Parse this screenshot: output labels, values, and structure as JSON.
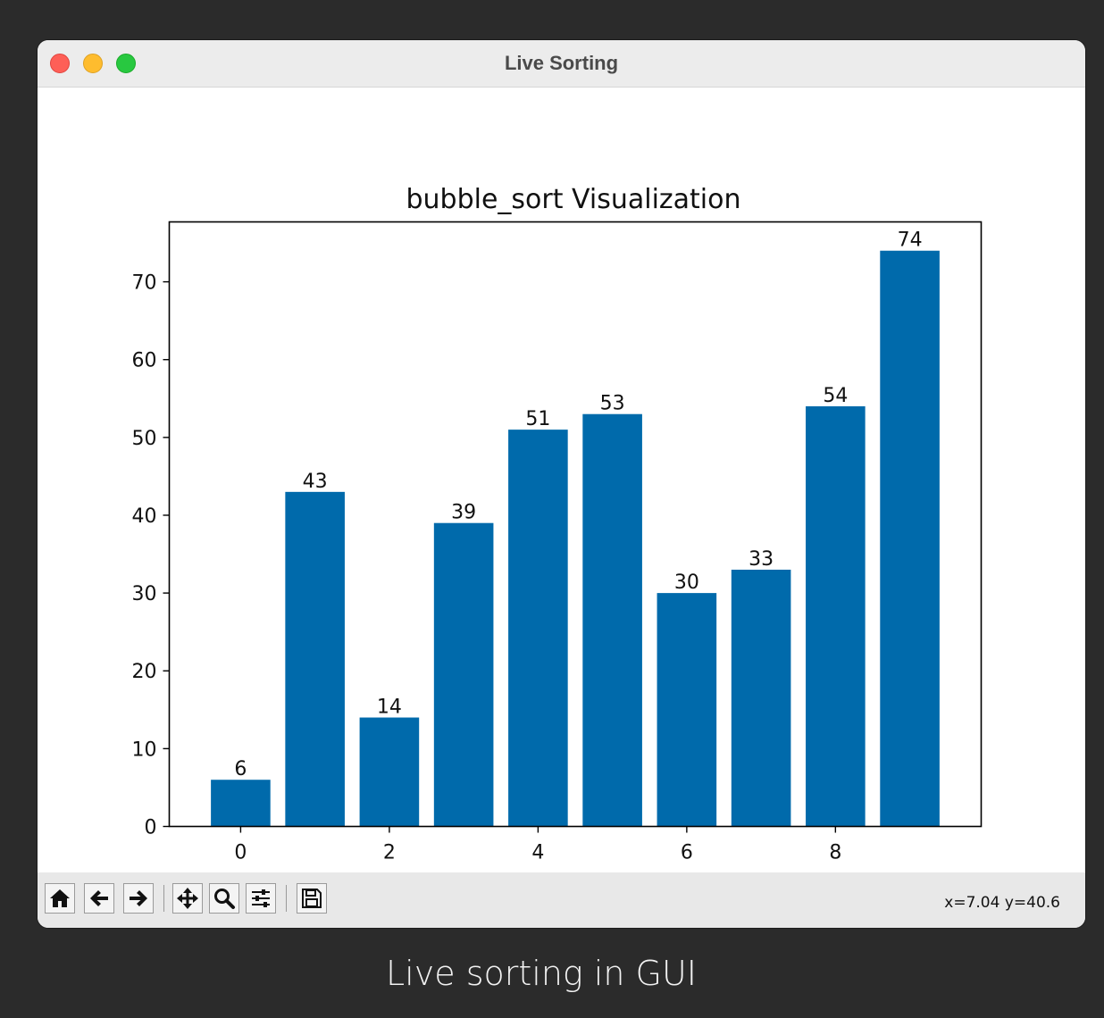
{
  "window": {
    "title": "Live Sorting"
  },
  "toolbar": {
    "buttons": [
      {
        "name": "home-button",
        "icon": "home-icon"
      },
      {
        "name": "back-button",
        "icon": "arrow-left-icon"
      },
      {
        "name": "forward-button",
        "icon": "arrow-right-icon"
      },
      {
        "name": "pan-button",
        "icon": "move-icon"
      },
      {
        "name": "zoom-button",
        "icon": "magnifier-icon"
      },
      {
        "name": "configure-subplots-button",
        "icon": "sliders-icon"
      },
      {
        "name": "save-button",
        "icon": "floppy-disk-icon"
      }
    ],
    "coords": "x=7.04 y=40.6"
  },
  "caption": "Live sorting in GUI",
  "colors": {
    "bar": "#006aab"
  },
  "chart_data": {
    "type": "bar",
    "title": "bubble_sort Visualization",
    "x": [
      0,
      1,
      2,
      3,
      4,
      5,
      6,
      7,
      8,
      9
    ],
    "values": [
      6,
      43,
      14,
      39,
      51,
      53,
      30,
      33,
      54,
      74
    ],
    "data_labels": [
      "6",
      "43",
      "14",
      "39",
      "51",
      "53",
      "30",
      "33",
      "54",
      "74"
    ],
    "xlim": [
      -0.96,
      9.96
    ],
    "ylim": [
      0,
      77.7
    ],
    "xticks": [
      0,
      2,
      4,
      6,
      8
    ],
    "xtick_labels": [
      "0",
      "2",
      "4",
      "6",
      "8"
    ],
    "yticks": [
      0,
      10,
      20,
      30,
      40,
      50,
      60,
      70
    ],
    "ytick_labels": [
      "0",
      "10",
      "20",
      "30",
      "40",
      "50",
      "60",
      "70"
    ],
    "bar_width": 0.8,
    "grid": false,
    "xlabel": "",
    "ylabel": ""
  }
}
